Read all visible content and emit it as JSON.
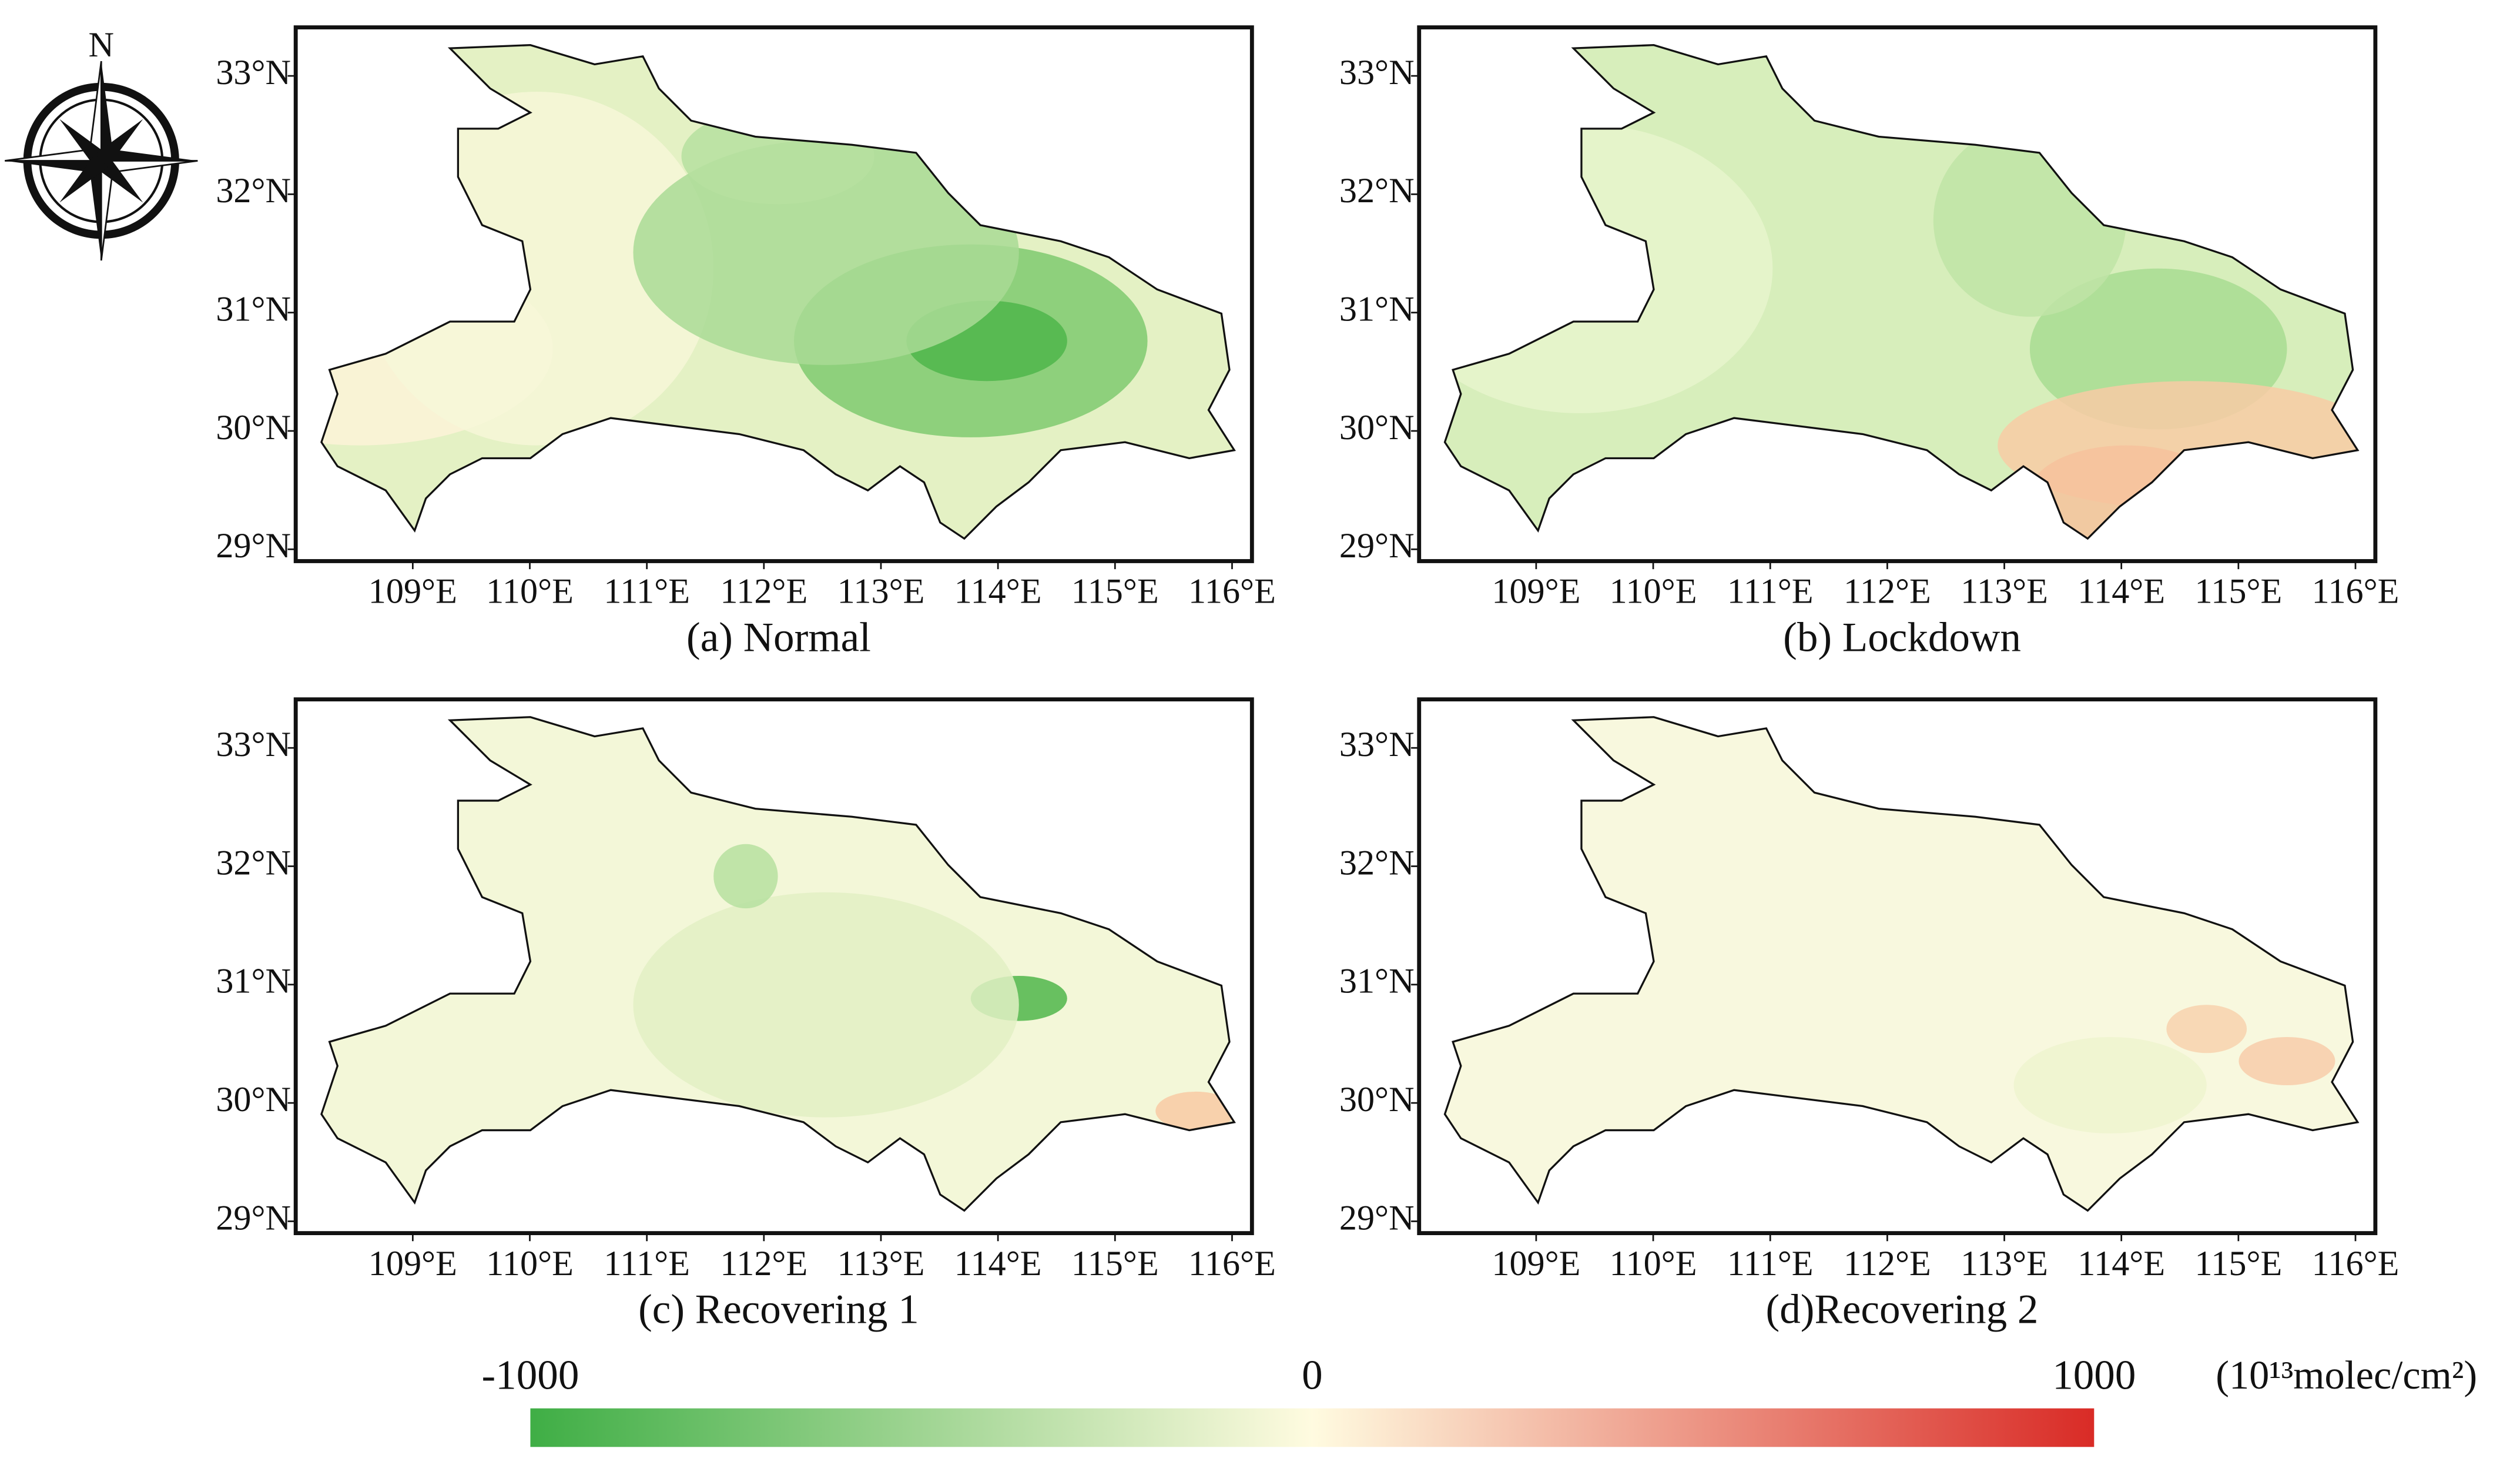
{
  "compass_label": "N",
  "panels": [
    {
      "title": "(a) Normal"
    },
    {
      "title": "(b) Lockdown"
    },
    {
      "title": "(c) Recovering 1"
    },
    {
      "title": "(d)Recovering 2"
    }
  ],
  "xlim": [
    108.0,
    116.17
  ],
  "ylim": [
    28.9,
    33.41
  ],
  "lon_ticks": [
    {
      "value": 109,
      "label": "109°E"
    },
    {
      "value": 110,
      "label": "110°E"
    },
    {
      "value": 111,
      "label": "111°E"
    },
    {
      "value": 112,
      "label": "112°E"
    },
    {
      "value": 113,
      "label": "113°E"
    },
    {
      "value": 114,
      "label": "114°E"
    },
    {
      "value": 115,
      "label": "115°E"
    },
    {
      "value": 116,
      "label": "116°E"
    }
  ],
  "lat_ticks": [
    {
      "value": 29,
      "label": "29°N"
    },
    {
      "value": 30,
      "label": "30°N"
    },
    {
      "value": 31,
      "label": "31°N"
    },
    {
      "value": 32,
      "label": "32°N"
    },
    {
      "value": 33,
      "label": "33°N"
    }
  ],
  "colorbar": {
    "ticks": [
      {
        "value": -1000,
        "label": "-1000"
      },
      0,
      1000
    ],
    "lim": [
      -1000,
      1000
    ],
    "colors": [
      "#3fae45",
      "#fffbe0",
      "#d92b26"
    ],
    "unit": "(10¹³molec/cm²)"
  }
}
